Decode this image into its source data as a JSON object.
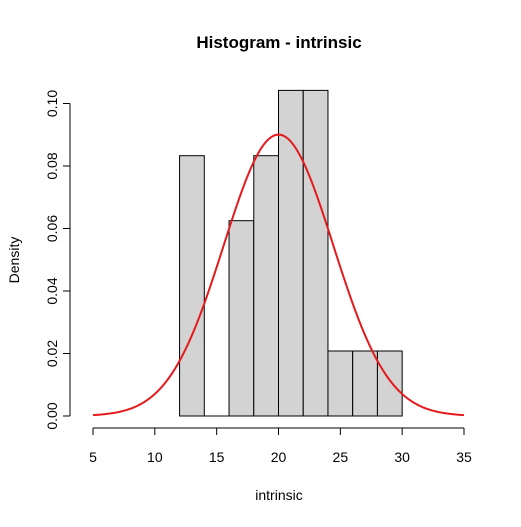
{
  "chart_data": {
    "type": "bar",
    "title": "Histogram - intrinsic",
    "xlabel": "intrinsic",
    "ylabel": "Density",
    "xlim": [
      5,
      35
    ],
    "ylim": [
      0,
      0.104
    ],
    "x_ticks": [
      "5",
      "10",
      "15",
      "20",
      "25",
      "30",
      "35"
    ],
    "y_ticks": [
      "0.00",
      "0.02",
      "0.04",
      "0.06",
      "0.08",
      "0.10"
    ],
    "bins": [
      {
        "x0": 12,
        "x1": 14,
        "density": 0.0833
      },
      {
        "x0": 14,
        "x1": 16,
        "density": 0
      },
      {
        "x0": 16,
        "x1": 18,
        "density": 0.0625
      },
      {
        "x0": 18,
        "x1": 20,
        "density": 0.0833
      },
      {
        "x0": 20,
        "x1": 22,
        "density": 0.1042
      },
      {
        "x0": 22,
        "x1": 24,
        "density": 0.1042
      },
      {
        "x0": 24,
        "x1": 26,
        "density": 0.0208
      },
      {
        "x0": 26,
        "x1": 28,
        "density": 0.0208
      },
      {
        "x0": 28,
        "x1": 30,
        "density": 0.0208
      }
    ],
    "density_curve": {
      "type": "normal",
      "mean": 20,
      "sd": 4.43
    },
    "colors": {
      "bar_fill": "#d3d3d3",
      "bar_stroke": "#000000",
      "curve": "#e41a1c"
    },
    "grid": false,
    "legend": "none"
  }
}
